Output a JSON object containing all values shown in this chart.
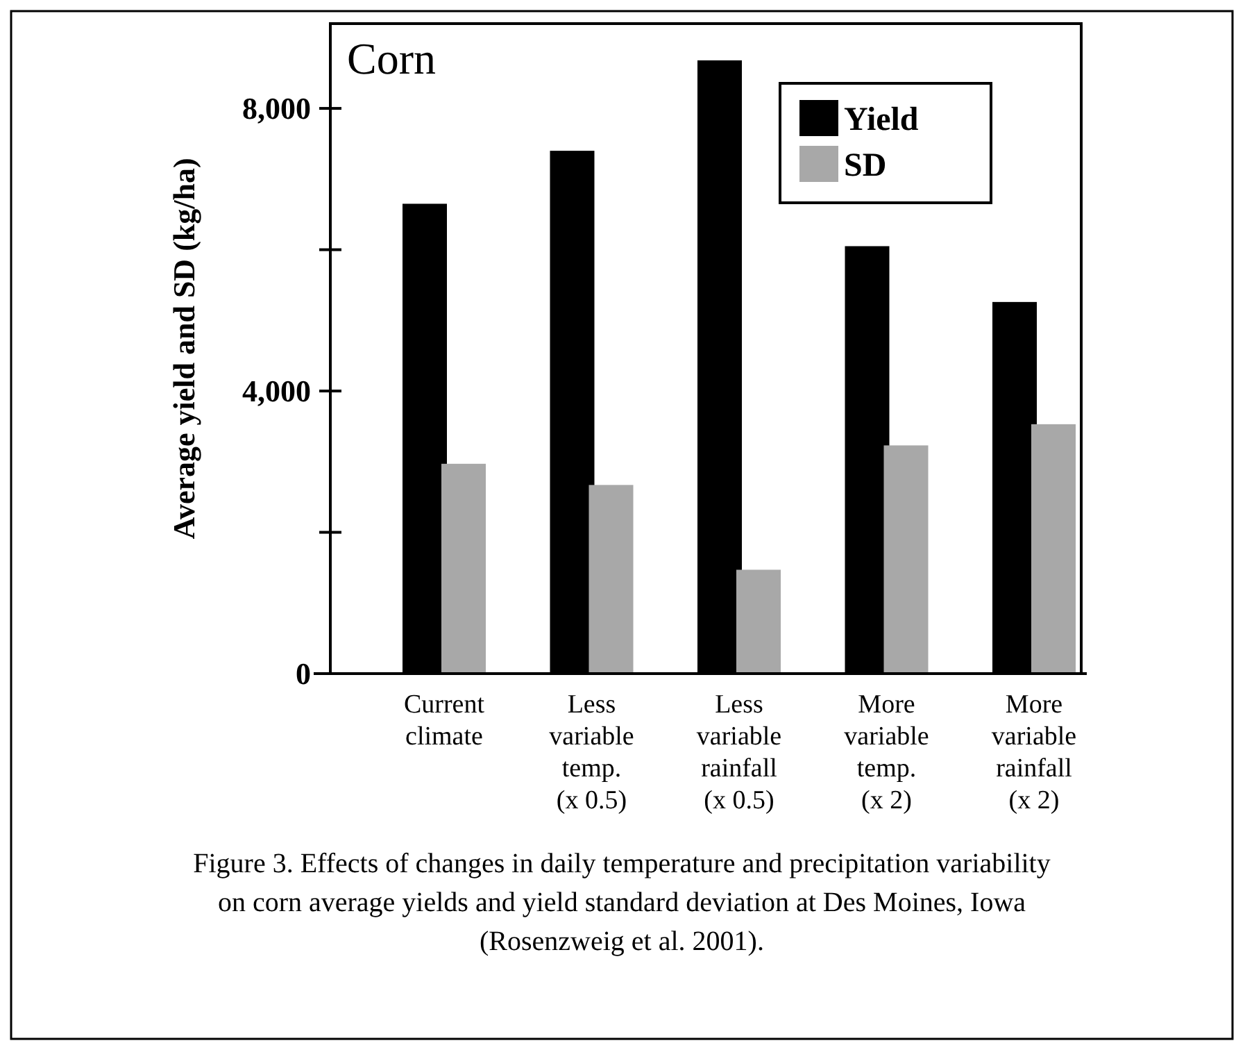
{
  "chart_data": {
    "type": "bar",
    "title": "Corn",
    "ylabel": "Average yield and SD (kg/ha)",
    "categories": [
      "Current\nclimate",
      "Less\nvariable\ntemp.\n(x 0.5)",
      "Less\nvariable\nrainfall\n(x 0.5)",
      "More\nvariable\ntemp.\n(x 2)",
      "More\nvariable\nrainfall\n(x 2)"
    ],
    "series": [
      {
        "name": "Yield",
        "color": "#000000",
        "values": [
          6650,
          7400,
          8680,
          6050,
          5260
        ]
      },
      {
        "name": "SD",
        "color": "#a8a8a8",
        "values": [
          2970,
          2670,
          1470,
          3230,
          3530
        ]
      }
    ],
    "ylim": [
      0,
      9200
    ],
    "yticks": [
      0,
      {
        "value": 2000,
        "label": null
      },
      {
        "value": 4000,
        "label": "4,000"
      },
      {
        "value": 6000,
        "label": null
      },
      {
        "value": 8000,
        "label": "8,000"
      }
    ],
    "legend": "top right",
    "grid": false,
    "annotations": [
      "Figure 3. Effects of changes in daily temperature and precipitation variability on corn average yields and yield standard deviation at Des Moines, Iowa (Rosenzweig et al. 2001)."
    ]
  }
}
